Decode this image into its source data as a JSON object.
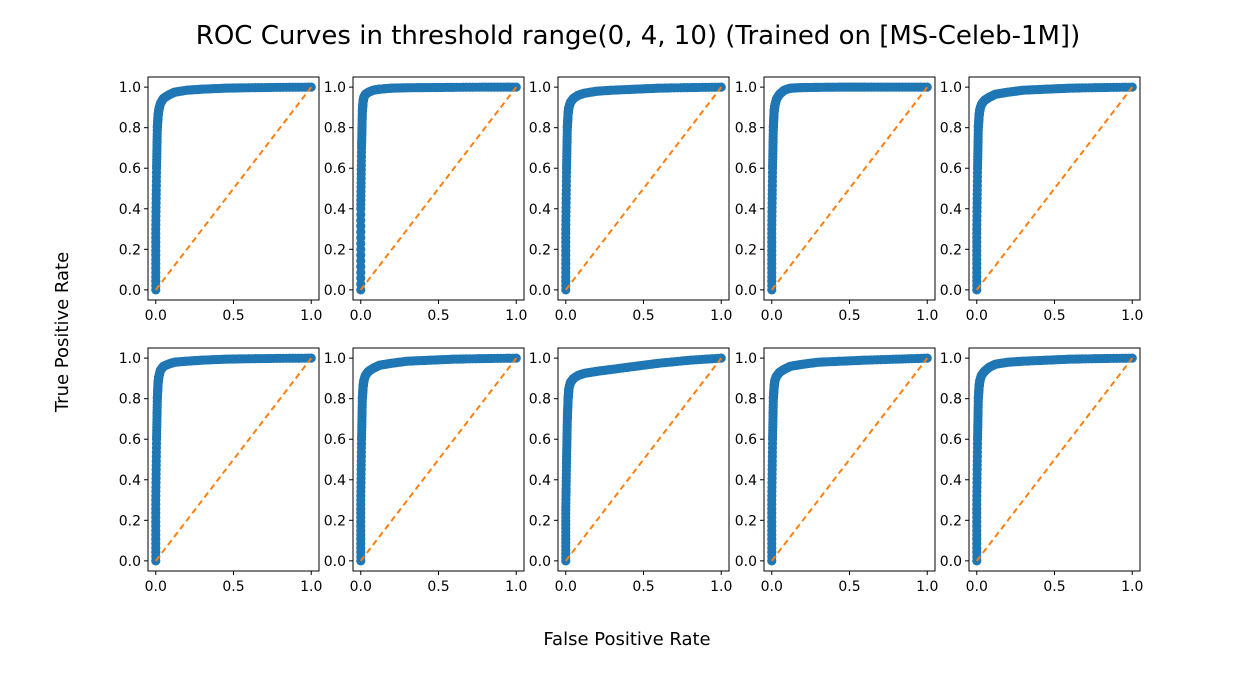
{
  "figure": {
    "title": "ROC Curves in threshold range(0, 4, 10) (Trained on [MS-Celeb-1M])",
    "xlabel": "False Positive Rate",
    "ylabel": "True Positive Rate"
  },
  "chart_data": {
    "type": "scatter",
    "layout": "2x5 grid of subplots",
    "title": "ROC Curves in threshold range(0, 4, 10) (Trained on [MS-Celeb-1M])",
    "xlabel": "False Positive Rate",
    "ylabel": "True Positive Rate",
    "xlim": [
      -0.05,
      1.05
    ],
    "ylim": [
      -0.05,
      1.05
    ],
    "x_ticks": [
      0.0,
      0.5,
      1.0
    ],
    "x_tick_labels": [
      "0.0",
      "0.5",
      "1.0"
    ],
    "y_ticks": [
      0.0,
      0.2,
      0.4,
      0.6,
      0.8,
      1.0
    ],
    "y_tick_labels": [
      "0.0",
      "0.2",
      "0.4",
      "0.6",
      "0.8",
      "1.0"
    ],
    "grid": false,
    "legend": "none",
    "colors": {
      "roc_points": "#1f77b4",
      "chance_line": "#ff7f0e"
    },
    "chance_line": {
      "style": "dashed",
      "x": [
        0.0,
        1.0
      ],
      "y": [
        0.0,
        1.0
      ]
    },
    "subplots": [
      {
        "roc_x": [
          0.0,
          0.0,
          0.005,
          0.01,
          0.015,
          0.02,
          0.03,
          0.05,
          0.08,
          0.12,
          0.2,
          0.3,
          0.45,
          0.6,
          0.8,
          1.0
        ],
        "roc_y": [
          0.0,
          0.3,
          0.6,
          0.8,
          0.86,
          0.89,
          0.92,
          0.945,
          0.96,
          0.975,
          0.985,
          0.99,
          0.995,
          0.997,
          0.999,
          1.0
        ]
      },
      {
        "roc_x": [
          0.0,
          0.0,
          0.005,
          0.01,
          0.015,
          0.02,
          0.03,
          0.05,
          0.08,
          0.12,
          0.2,
          0.3,
          0.45,
          0.6,
          0.8,
          1.0
        ],
        "roc_y": [
          0.0,
          0.4,
          0.7,
          0.88,
          0.93,
          0.95,
          0.965,
          0.975,
          0.985,
          0.99,
          0.995,
          0.997,
          0.998,
          0.999,
          1.0,
          1.0
        ]
      },
      {
        "roc_x": [
          0.0,
          0.0,
          0.005,
          0.01,
          0.015,
          0.02,
          0.03,
          0.05,
          0.08,
          0.12,
          0.2,
          0.3,
          0.45,
          0.6,
          0.8,
          1.0
        ],
        "roc_y": [
          0.0,
          0.3,
          0.6,
          0.8,
          0.87,
          0.9,
          0.925,
          0.945,
          0.96,
          0.97,
          0.98,
          0.985,
          0.99,
          0.995,
          0.998,
          1.0
        ]
      },
      {
        "roc_x": [
          0.0,
          0.0,
          0.005,
          0.01,
          0.015,
          0.02,
          0.03,
          0.05,
          0.08,
          0.12,
          0.2,
          0.3,
          0.45,
          0.6,
          0.8,
          1.0
        ],
        "roc_y": [
          0.0,
          0.3,
          0.6,
          0.8,
          0.88,
          0.91,
          0.94,
          0.965,
          0.985,
          0.995,
          0.998,
          0.999,
          1.0,
          1.0,
          1.0,
          1.0
        ]
      },
      {
        "roc_x": [
          0.0,
          0.0,
          0.005,
          0.01,
          0.015,
          0.02,
          0.03,
          0.05,
          0.08,
          0.12,
          0.2,
          0.3,
          0.45,
          0.6,
          0.8,
          1.0
        ],
        "roc_y": [
          0.0,
          0.3,
          0.6,
          0.8,
          0.86,
          0.89,
          0.915,
          0.935,
          0.95,
          0.965,
          0.975,
          0.985,
          0.99,
          0.995,
          0.998,
          1.0
        ]
      },
      {
        "roc_x": [
          0.0,
          0.0,
          0.005,
          0.01,
          0.015,
          0.02,
          0.03,
          0.05,
          0.08,
          0.12,
          0.2,
          0.3,
          0.45,
          0.6,
          0.8,
          1.0
        ],
        "roc_y": [
          0.0,
          0.3,
          0.6,
          0.8,
          0.88,
          0.91,
          0.94,
          0.96,
          0.97,
          0.98,
          0.985,
          0.99,
          0.995,
          0.997,
          0.999,
          1.0
        ]
      },
      {
        "roc_x": [
          0.0,
          0.0,
          0.005,
          0.01,
          0.015,
          0.02,
          0.03,
          0.05,
          0.08,
          0.12,
          0.2,
          0.3,
          0.45,
          0.6,
          0.8,
          1.0
        ],
        "roc_y": [
          0.0,
          0.3,
          0.6,
          0.8,
          0.86,
          0.89,
          0.915,
          0.935,
          0.95,
          0.965,
          0.975,
          0.985,
          0.99,
          0.995,
          0.998,
          1.0
        ]
      },
      {
        "roc_x": [
          0.0,
          0.0,
          0.005,
          0.01,
          0.015,
          0.02,
          0.03,
          0.05,
          0.08,
          0.12,
          0.2,
          0.3,
          0.45,
          0.6,
          0.8,
          1.0
        ],
        "roc_y": [
          0.0,
          0.25,
          0.5,
          0.7,
          0.8,
          0.85,
          0.88,
          0.9,
          0.915,
          0.925,
          0.935,
          0.945,
          0.96,
          0.975,
          0.99,
          1.0
        ]
      },
      {
        "roc_x": [
          0.0,
          0.0,
          0.005,
          0.01,
          0.015,
          0.02,
          0.03,
          0.05,
          0.08,
          0.12,
          0.2,
          0.3,
          0.45,
          0.6,
          0.8,
          1.0
        ],
        "roc_y": [
          0.0,
          0.3,
          0.6,
          0.8,
          0.86,
          0.89,
          0.91,
          0.93,
          0.945,
          0.96,
          0.97,
          0.98,
          0.985,
          0.99,
          0.995,
          1.0
        ]
      },
      {
        "roc_x": [
          0.0,
          0.0,
          0.005,
          0.01,
          0.015,
          0.02,
          0.03,
          0.05,
          0.08,
          0.12,
          0.2,
          0.3,
          0.45,
          0.6,
          0.8,
          1.0
        ],
        "roc_y": [
          0.0,
          0.3,
          0.6,
          0.8,
          0.86,
          0.89,
          0.915,
          0.935,
          0.955,
          0.97,
          0.98,
          0.985,
          0.99,
          0.995,
          0.998,
          1.0
        ]
      }
    ]
  }
}
